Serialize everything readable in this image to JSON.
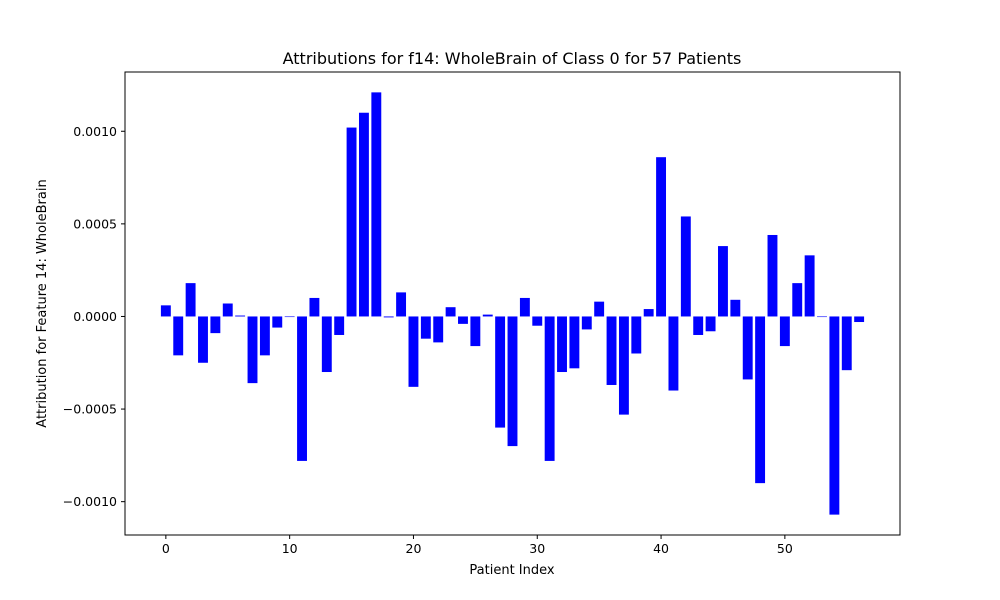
{
  "chart_data": {
    "type": "bar",
    "title": "Attributions for f14: WholeBrain of Class 0 for 57 Patients",
    "xlabel": "Patient Index",
    "ylabel": "Attribution for Feature 14: WholeBrain",
    "xlim": [
      -3.3,
      59.3
    ],
    "ylim": [
      -0.00118,
      0.00132
    ],
    "xticks": [
      0,
      10,
      20,
      30,
      40,
      50
    ],
    "xtick_labels": [
      "0",
      "10",
      "20",
      "30",
      "40",
      "50"
    ],
    "yticks": [
      -0.001,
      -0.0005,
      0.0,
      0.0005,
      0.001
    ],
    "ytick_labels": [
      "−0.0010",
      "−0.0005",
      "0.0000",
      "0.0005",
      "0.0010"
    ],
    "bar_color": "#0000ff",
    "grid": false,
    "x": [
      0,
      1,
      2,
      3,
      4,
      5,
      6,
      7,
      8,
      9,
      10,
      11,
      12,
      13,
      14,
      15,
      16,
      17,
      18,
      19,
      20,
      21,
      22,
      23,
      24,
      25,
      26,
      27,
      28,
      29,
      30,
      31,
      32,
      33,
      34,
      35,
      36,
      37,
      38,
      39,
      40,
      41,
      42,
      43,
      44,
      45,
      46,
      47,
      48,
      49,
      50,
      51,
      52,
      53,
      54,
      55,
      56
    ],
    "values": [
      6e-05,
      -0.00021,
      0.00018,
      -0.00025,
      -9e-05,
      7e-05,
      5e-06,
      -0.00036,
      -0.00021,
      -6e-05,
      0.0,
      -0.00078,
      0.0001,
      -0.0003,
      -0.0001,
      0.00102,
      0.0011,
      0.00121,
      -5e-06,
      0.00013,
      -0.00038,
      -0.00012,
      -0.00014,
      5e-05,
      -4e-05,
      -0.00016,
      1e-05,
      -0.0006,
      -0.0007,
      0.0001,
      -5e-05,
      -0.00078,
      -0.0003,
      -0.00028,
      -7e-05,
      8e-05,
      -0.00037,
      -0.00053,
      -0.0002,
      4e-05,
      0.00086,
      -0.0004,
      0.00054,
      -0.0001,
      -8e-05,
      0.00038,
      9e-05,
      -0.00034,
      -0.0009,
      0.00044,
      -0.00016,
      0.00018,
      0.00033,
      0.0,
      -0.00107,
      -0.00029,
      -3e-05
    ]
  }
}
